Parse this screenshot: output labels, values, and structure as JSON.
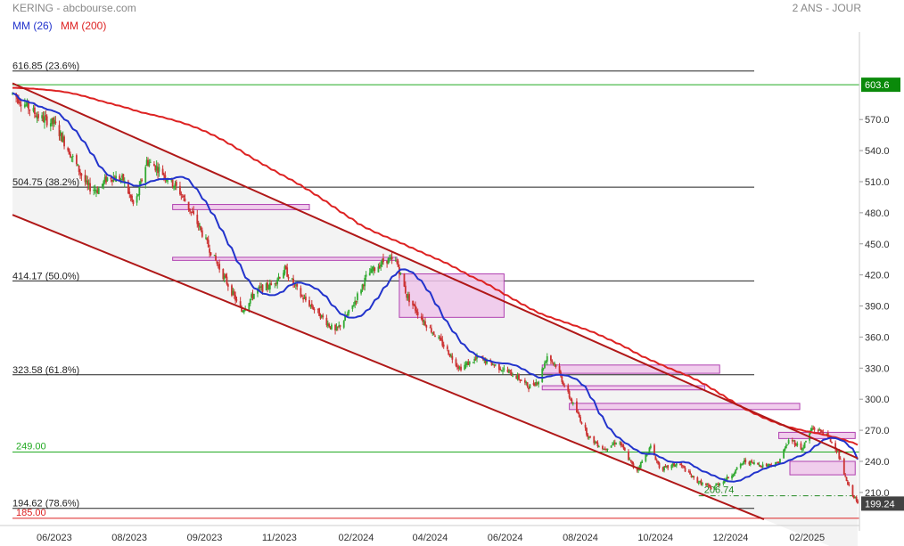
{
  "header": {
    "title": "KERING - abcbourse.com",
    "period": "2 ANS - JOUR"
  },
  "legend": [
    {
      "label": "MM (26)",
      "color": "#2233cc"
    },
    {
      "label": "MM (200)",
      "color": "#dd2222"
    }
  ],
  "colors": {
    "up": "#33aa33",
    "down": "#cc3333",
    "mm26": "#2233cc",
    "mm200": "#dd2222",
    "channel": "#b01818",
    "zone_fill": "#efc6ea",
    "zone_stroke": "#b040b0",
    "last_badge": "#424242",
    "high_badge": "#0a8a0a"
  },
  "chart_data": {
    "type": "candlestick",
    "x_tick_labels": [
      "06/2023",
      "08/2023",
      "09/2023",
      "11/2023",
      "02/2024",
      "04/2024",
      "06/2024",
      "08/2024",
      "10/2024",
      "12/2024",
      "02/2025"
    ],
    "y_ticks": [
      210,
      240,
      270,
      300,
      330,
      360,
      390,
      420,
      450,
      480,
      510,
      540,
      570
    ],
    "y_tick_labels": [
      "210.0",
      "240.0",
      "270.0",
      "300.0",
      "330.0",
      "360.0",
      "390.0",
      "420.0",
      "450.0",
      "480.0",
      "510.0",
      "540.0",
      "570.0"
    ],
    "ylim": [
      181.5,
      651
    ],
    "x_range": [
      "2023-04-28",
      "2025-03-14"
    ],
    "last_value": "199.24",
    "high_value": "603.6",
    "fibonacci_levels": [
      {
        "value": 616.85,
        "label": "616.85",
        "pct": "(23.6%)"
      },
      {
        "value": 504.75,
        "label": "504.75",
        "pct": "(38.2%)"
      },
      {
        "value": 414.17,
        "label": "414.17",
        "pct": "(50.0%)"
      },
      {
        "value": 323.58,
        "label": "323.58",
        "pct": "(61.8%)"
      },
      {
        "value": 194.62,
        "label": "194.62",
        "pct": "(78.6%)"
      }
    ],
    "horizontal_lines": [
      {
        "value": 603.6,
        "label": "",
        "color": "#22aa22"
      },
      {
        "value": 249.0,
        "label": "249.00",
        "color": "#22aa22"
      },
      {
        "value": 185.0,
        "label": "185.00",
        "color": "#dd2222"
      }
    ],
    "support_line": {
      "value": 206.74,
      "label": "206.74",
      "from": "2024-11-05",
      "to": "2025-03-14"
    },
    "channel": {
      "upper": [
        [
          "2023-04-28",
          605
        ],
        [
          "2025-03-14",
          243
        ]
      ],
      "lower": [
        [
          "2023-04-28",
          478
        ],
        [
          "2024-12-28",
          184
        ]
      ]
    },
    "resistance_zones": [
      {
        "x0": "2023-09-05",
        "x1": "2023-12-25",
        "y0": 483,
        "y1": 488
      },
      {
        "x0": "2023-09-05",
        "x1": "2024-03-05",
        "y0": 434,
        "y1": 437
      },
      {
        "x0": "2024-03-07",
        "x1": "2024-05-31",
        "y0": 379,
        "y1": 421
      },
      {
        "x0": "2024-07-01",
        "x1": "2024-11-22",
        "y0": 325,
        "y1": 333
      },
      {
        "x0": "2024-07-01",
        "x1": "2024-11-10",
        "y0": 309,
        "y1": 313
      },
      {
        "x0": "2024-07-23",
        "x1": "2025-01-26",
        "y0": 290,
        "y1": 296
      },
      {
        "x0": "2025-01-09",
        "x1": "2025-03-12",
        "y0": 262,
        "y1": 268
      },
      {
        "x0": "2025-01-18",
        "x1": "2025-03-12",
        "y0": 227,
        "y1": 240
      }
    ],
    "anchors": [
      [
        "2023-04-28",
        595
      ],
      [
        "2023-05-08",
        585
      ],
      [
        "2023-05-20",
        572
      ],
      [
        "2023-06-01",
        566
      ],
      [
        "2023-06-15",
        535
      ],
      [
        "2023-06-28",
        505
      ],
      [
        "2023-07-06",
        502
      ],
      [
        "2023-07-15",
        515
      ],
      [
        "2023-07-27",
        512
      ],
      [
        "2023-08-05",
        485
      ],
      [
        "2023-08-15",
        530
      ],
      [
        "2023-08-25",
        522
      ],
      [
        "2023-09-10",
        502
      ],
      [
        "2023-09-25",
        470
      ],
      [
        "2023-10-05",
        445
      ],
      [
        "2023-10-18",
        415
      ],
      [
        "2023-10-31",
        385
      ],
      [
        "2023-11-12",
        405
      ],
      [
        "2023-11-24",
        410
      ],
      [
        "2023-12-05",
        425
      ],
      [
        "2023-12-18",
        400
      ],
      [
        "2023-12-31",
        385
      ],
      [
        "2024-01-15",
        365
      ],
      [
        "2024-01-27",
        385
      ],
      [
        "2024-02-10",
        420
      ],
      [
        "2024-02-25",
        435
      ],
      [
        "2024-03-05",
        432
      ],
      [
        "2024-03-13",
        400
      ],
      [
        "2024-03-25",
        378
      ],
      [
        "2024-04-10",
        355
      ],
      [
        "2024-04-25",
        330
      ],
      [
        "2024-05-10",
        340
      ],
      [
        "2024-05-25",
        332
      ],
      [
        "2024-06-10",
        322
      ],
      [
        "2024-06-20",
        312
      ],
      [
        "2024-06-28",
        318
      ],
      [
        "2024-07-05",
        342
      ],
      [
        "2024-07-12",
        333
      ],
      [
        "2024-07-20",
        310
      ],
      [
        "2024-07-28",
        290
      ],
      [
        "2024-08-08",
        263
      ],
      [
        "2024-08-20",
        252
      ],
      [
        "2024-09-01",
        260
      ],
      [
        "2024-09-15",
        230
      ],
      [
        "2024-09-27",
        254
      ],
      [
        "2024-10-05",
        232
      ],
      [
        "2024-10-20",
        238
      ],
      [
        "2024-11-02",
        222
      ],
      [
        "2024-11-15",
        214
      ],
      [
        "2024-11-30",
        225
      ],
      [
        "2024-12-12",
        240
      ],
      [
        "2024-12-28",
        236
      ],
      [
        "2025-01-08",
        238
      ],
      [
        "2025-01-18",
        262
      ],
      [
        "2025-01-28",
        252
      ],
      [
        "2025-02-05",
        272
      ],
      [
        "2025-02-15",
        268
      ],
      [
        "2025-02-25",
        252
      ],
      [
        "2025-03-05",
        220
      ],
      [
        "2025-03-14",
        199.24
      ]
    ]
  }
}
